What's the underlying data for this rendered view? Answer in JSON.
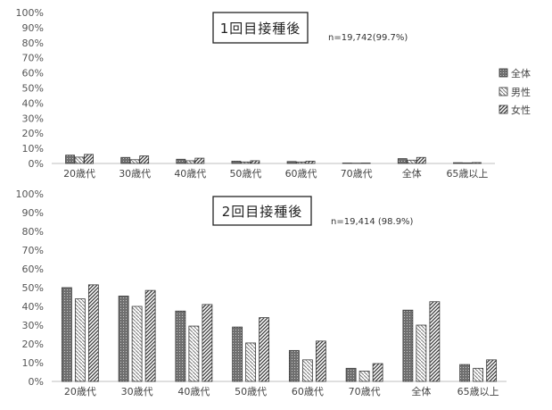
{
  "chart_data": [
    {
      "type": "bar",
      "title": "1回目接種後",
      "annotation": "n=19,742(99.7%)",
      "categories": [
        "20歳代",
        "30歳代",
        "40歳代",
        "50歳代",
        "60歳代",
        "70歳代",
        "全体",
        "65歳以上"
      ],
      "series": [
        {
          "name": "全体",
          "values": [
            5.5,
            4.0,
            2.8,
            1.5,
            1.3,
            0.3,
            3.2,
            0.5
          ]
        },
        {
          "name": "男性",
          "values": [
            4.2,
            2.5,
            1.8,
            1.0,
            1.0,
            0.2,
            2.2,
            0.4
          ]
        },
        {
          "name": "女性",
          "values": [
            6.0,
            5.0,
            3.5,
            1.8,
            1.5,
            0.3,
            4.0,
            0.6
          ]
        }
      ],
      "ylim": [
        0,
        100
      ],
      "yticks": [
        "0%",
        "10%",
        "20%",
        "30%",
        "40%",
        "50%",
        "60%",
        "70%",
        "80%",
        "90%",
        "100%"
      ],
      "legend": [
        "全体",
        "男性",
        "女性"
      ],
      "legend_position": "right",
      "grid": false
    },
    {
      "type": "bar",
      "title": "2回目接種後",
      "annotation": "n=19,414 (98.9%)",
      "categories": [
        "20歳代",
        "30歳代",
        "40歳代",
        "50歳代",
        "60歳代",
        "70歳代",
        "全体",
        "65歳以上"
      ],
      "series": [
        {
          "name": "全体",
          "values": [
            50.0,
            45.5,
            37.5,
            29.0,
            16.5,
            7.0,
            38.0,
            9.0
          ]
        },
        {
          "name": "男性",
          "values": [
            44.0,
            40.0,
            29.5,
            20.5,
            11.5,
            5.5,
            30.0,
            7.0
          ]
        },
        {
          "name": "女性",
          "values": [
            51.5,
            48.5,
            41.0,
            34.0,
            21.5,
            9.5,
            42.5,
            11.5
          ]
        }
      ],
      "ylim": [
        0,
        100
      ],
      "yticks": [
        "0%",
        "10%",
        "20%",
        "30%",
        "40%",
        "50%",
        "60%",
        "70%",
        "80%",
        "90%",
        "100%"
      ],
      "grid": false
    }
  ]
}
